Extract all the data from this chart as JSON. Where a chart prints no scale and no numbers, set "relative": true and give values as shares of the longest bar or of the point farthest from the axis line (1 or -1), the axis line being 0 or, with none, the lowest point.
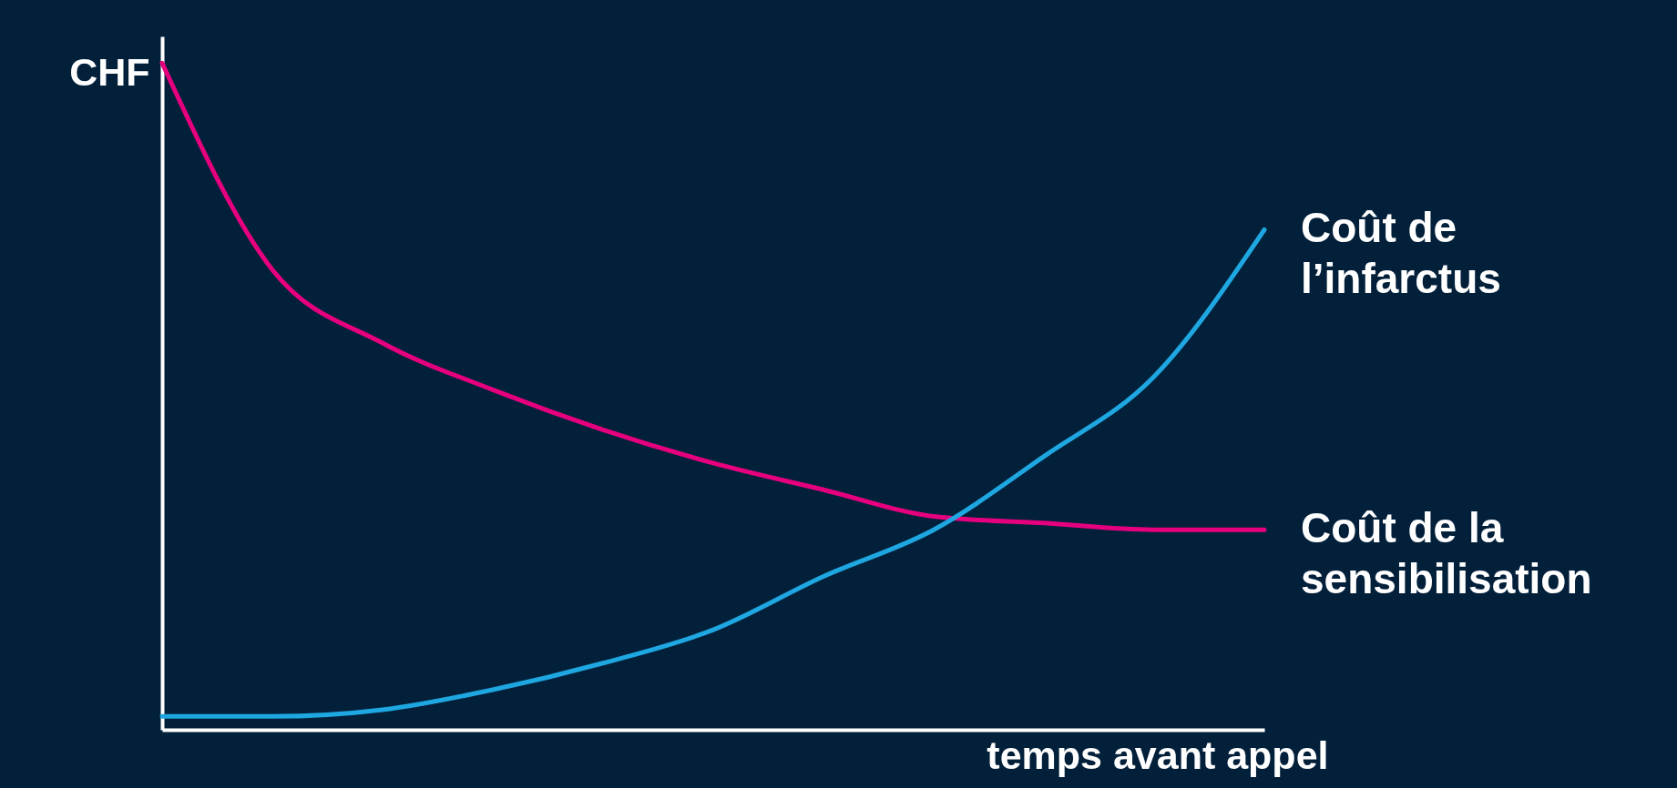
{
  "chart_data": {
    "type": "line",
    "relative": true,
    "xlabel": "temps avant appel",
    "ylabel": "CHF",
    "tick_labels": false,
    "grid": false,
    "legend": false,
    "marker": "none",
    "line_style": "solid",
    "categories": [
      null,
      null,
      null,
      null,
      null,
      null,
      null,
      null,
      null,
      null,
      null
    ],
    "series": [
      {
        "name": "Coût de la sensibilisation",
        "color": "#e6007e",
        "values": [
          1,
          0.69,
          0.58,
          0.51,
          0.45,
          0.4,
          0.36,
          0.32,
          0.31,
          0.3,
          0.3
        ]
      },
      {
        "name": "Coût de l’infarctus",
        "color": "#1ea7e1",
        "values": [
          0.02,
          0.02,
          0.03,
          0.06,
          0.1,
          0.15,
          0.23,
          0.3,
          0.41,
          0.53,
          0.75
        ]
      }
    ]
  }
}
